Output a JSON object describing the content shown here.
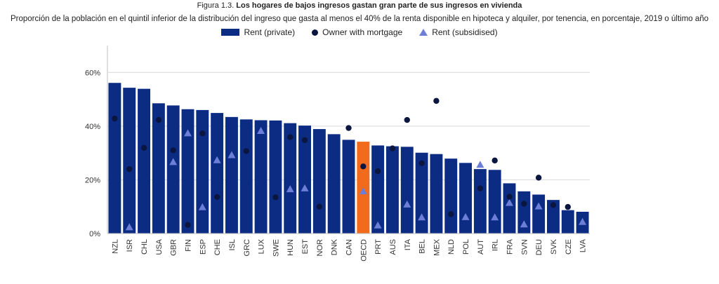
{
  "header": {
    "figure_label": "Figura 1.3.",
    "title": "Los hogares de bajos ingresos gastan gran parte de sus ingresos en vivienda",
    "subtitle": "Proporción de la población en el quintil inferior de la distribución del ingreso que gasta al menos el 40% de la renta disponible en hipoteca y alquiler, por tenencia, en porcentaje, 2019 o último año"
  },
  "colors": {
    "bar": "#0c2c84",
    "highlight": "#f26a1b",
    "dot": "#0a1640",
    "triangle": "#6d7ed6",
    "grid": "#d9d9d9"
  },
  "chart_data": {
    "type": "bar",
    "ylim": [
      0,
      70
    ],
    "yticks": [
      0,
      20,
      40,
      60
    ],
    "ytick_labels": [
      "0%",
      "20%",
      "40%",
      "60%"
    ],
    "grid": true,
    "legend_position": "top-center",
    "highlight_category": "OECD",
    "categories": [
      "NZL",
      "ISR",
      "CHL",
      "USA",
      "GBR",
      "FIN",
      "ESP",
      "CHE",
      "ISL",
      "GRC",
      "LUX",
      "SWE",
      "HUN",
      "EST",
      "NOR",
      "DNK",
      "CAN",
      "OECD",
      "PRT",
      "AUS",
      "ITA",
      "BEL",
      "MEX",
      "NLD",
      "POL",
      "AUT",
      "IRL",
      "FRA",
      "SVN",
      "DEU",
      "SVK",
      "CZE",
      "LVA"
    ],
    "series": [
      {
        "name": "Rent (private)",
        "kind": "bar",
        "values": [
          56.1,
          54.3,
          53.9,
          48.5,
          47.7,
          46.3,
          46.0,
          44.9,
          43.4,
          42.5,
          42.2,
          42.1,
          41.1,
          40.2,
          38.9,
          37.0,
          34.9,
          34.2,
          32.8,
          32.5,
          32.3,
          30.1,
          29.6,
          27.9,
          26.3,
          24.0,
          23.7,
          18.7,
          15.7,
          14.5,
          12.5,
          8.7,
          8.1
        ]
      },
      {
        "name": "Owner with mortgage",
        "kind": "dot",
        "values": [
          42.8,
          24.0,
          31.9,
          42.3,
          31.0,
          3.2,
          37.3,
          13.6,
          null,
          30.7,
          null,
          13.5,
          35.9,
          34.8,
          10.0,
          null,
          39.3,
          25.0,
          23.2,
          31.7,
          42.3,
          26.2,
          49.4,
          7.2,
          null,
          16.8,
          27.2,
          13.7,
          11.1,
          20.8,
          10.6,
          9.9,
          null
        ]
      },
      {
        "name": "Rent (subsidised)",
        "kind": "triangle",
        "values": [
          null,
          2.5,
          null,
          null,
          26.8,
          37.5,
          10.0,
          27.5,
          29.4,
          null,
          38.4,
          null,
          16.7,
          17.0,
          null,
          null,
          null,
          15.9,
          3.2,
          null,
          11.0,
          6.2,
          null,
          null,
          6.3,
          25.8,
          6.2,
          11.6,
          3.6,
          10.3,
          null,
          null,
          4.5
        ]
      }
    ]
  }
}
